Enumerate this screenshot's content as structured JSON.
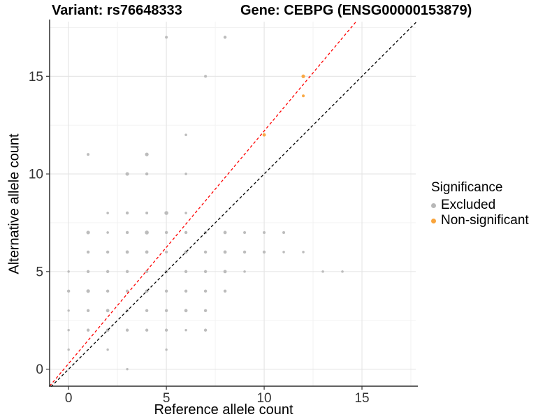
{
  "titles": {
    "left": "Variant: rs76648333",
    "right": "Gene: CEBPG (ENSG00000153879)"
  },
  "chart_data": {
    "type": "scatter",
    "xlabel": "Reference allele count",
    "ylabel": "Alternative allele count",
    "xlim": [
      -0.97,
      17.75
    ],
    "ylim": [
      -0.87,
      17.8
    ],
    "x_ticks": [
      0,
      5,
      10,
      15
    ],
    "y_ticks": [
      0,
      5,
      10,
      15
    ],
    "x_minor": [
      2.5,
      7.5,
      12.5,
      17.5
    ],
    "y_minor": [
      2.5,
      7.5,
      12.5,
      17.5
    ],
    "grid": true,
    "colors": {
      "excluded": "#b8b8b8",
      "non_significant": "#f9a43b",
      "identity_line": "#000000",
      "fit_line": "#ff0000",
      "grid_major": "#e4e4e4",
      "grid_minor": "#f1f1f1",
      "axis_line": "#2f2f2f",
      "tick_text": "#333333"
    },
    "legend": {
      "title": "Significance",
      "position": "right",
      "entries": [
        {
          "label": "Excluded",
          "color": "#b8b8b8"
        },
        {
          "label": "Non-significant",
          "color": "#f9a43b"
        }
      ]
    },
    "series": [
      {
        "name": "Excluded",
        "color": "#b8b8b8",
        "points": [
          [
            3,
            0,
            1.7
          ],
          [
            0,
            1,
            1.7
          ],
          [
            2,
            1,
            1.7
          ],
          [
            5,
            1,
            1.7
          ],
          [
            0,
            2,
            1.7
          ],
          [
            1,
            2,
            2.2
          ],
          [
            2,
            2,
            2.4
          ],
          [
            3,
            2,
            2.2
          ],
          [
            4,
            2,
            2.2
          ],
          [
            5,
            2,
            2.2
          ],
          [
            6,
            2,
            1.7
          ],
          [
            7,
            2,
            2.2
          ],
          [
            0,
            3,
            1.7
          ],
          [
            1,
            3,
            2.2
          ],
          [
            2,
            3,
            2.4
          ],
          [
            3,
            3,
            2.2
          ],
          [
            4,
            3,
            2.2
          ],
          [
            5,
            3,
            2.2
          ],
          [
            6,
            3,
            2.4
          ],
          [
            7,
            3,
            2.2
          ],
          [
            0,
            4,
            2.2
          ],
          [
            1,
            4,
            2.6
          ],
          [
            2,
            4,
            2.2
          ],
          [
            3,
            4,
            2.2
          ],
          [
            4,
            4,
            2.4
          ],
          [
            5,
            4,
            2.2
          ],
          [
            6,
            4,
            2.2
          ],
          [
            7,
            4,
            2.2
          ],
          [
            8,
            4,
            2.2
          ],
          [
            0,
            5,
            1.7
          ],
          [
            1,
            5,
            2.2
          ],
          [
            2,
            5,
            2.2
          ],
          [
            3,
            5,
            2.2
          ],
          [
            4,
            5,
            2.2
          ],
          [
            5,
            5,
            2.4
          ],
          [
            6,
            5,
            2.2
          ],
          [
            7,
            5,
            2.2
          ],
          [
            8,
            5,
            2.4
          ],
          [
            9,
            5,
            1.8
          ],
          [
            13,
            5,
            1.8
          ],
          [
            14,
            5,
            1.8
          ],
          [
            1,
            6,
            2.2
          ],
          [
            2,
            6,
            2.2
          ],
          [
            3,
            6,
            2.4
          ],
          [
            4,
            6,
            2.4
          ],
          [
            5,
            6,
            2.0
          ],
          [
            6,
            6,
            2.4
          ],
          [
            7,
            6,
            2.2
          ],
          [
            8,
            6,
            2.4
          ],
          [
            9,
            6,
            2.2
          ],
          [
            10,
            6,
            2.2
          ],
          [
            11,
            6,
            1.8
          ],
          [
            12,
            6,
            1.8
          ],
          [
            1,
            7,
            2.6
          ],
          [
            2,
            7,
            1.8
          ],
          [
            3,
            7,
            2.2
          ],
          [
            4,
            7,
            2.8
          ],
          [
            5,
            7,
            2.2
          ],
          [
            6,
            7,
            2.2
          ],
          [
            7,
            7,
            2.2
          ],
          [
            8,
            7,
            2.4
          ],
          [
            9,
            7,
            2.0
          ],
          [
            10,
            7,
            2.0
          ],
          [
            11,
            7,
            2.0
          ],
          [
            2,
            8,
            1.8
          ],
          [
            3,
            8,
            2.2
          ],
          [
            4,
            8,
            2.0
          ],
          [
            5,
            8,
            2.8
          ],
          [
            6,
            8,
            1.8
          ],
          [
            3,
            10,
            2.6
          ],
          [
            4,
            10,
            2.2
          ],
          [
            6,
            10,
            1.8
          ],
          [
            1,
            11,
            2.0
          ],
          [
            4,
            11,
            2.6
          ],
          [
            6,
            12,
            1.8
          ],
          [
            7,
            15,
            2.0
          ],
          [
            5,
            17,
            2.0
          ],
          [
            8,
            17,
            2.2
          ]
        ]
      },
      {
        "name": "Non-significant",
        "color": "#f9a43b",
        "points": [
          [
            10,
            12,
            2.4
          ],
          [
            12,
            14,
            2.0
          ],
          [
            12,
            15,
            2.6
          ]
        ]
      }
    ],
    "lines": [
      {
        "name": "identity-line",
        "color": "#000000",
        "dash": "4,3.2",
        "points": [
          [
            -0.9,
            -0.9
          ],
          [
            17.78,
            17.78
          ]
        ]
      },
      {
        "name": "fit-line",
        "color": "#ff0000",
        "dash": "4,3.2",
        "points": [
          [
            -0.97,
            -0.868
          ],
          [
            14.7,
            17.8
          ]
        ]
      }
    ]
  }
}
